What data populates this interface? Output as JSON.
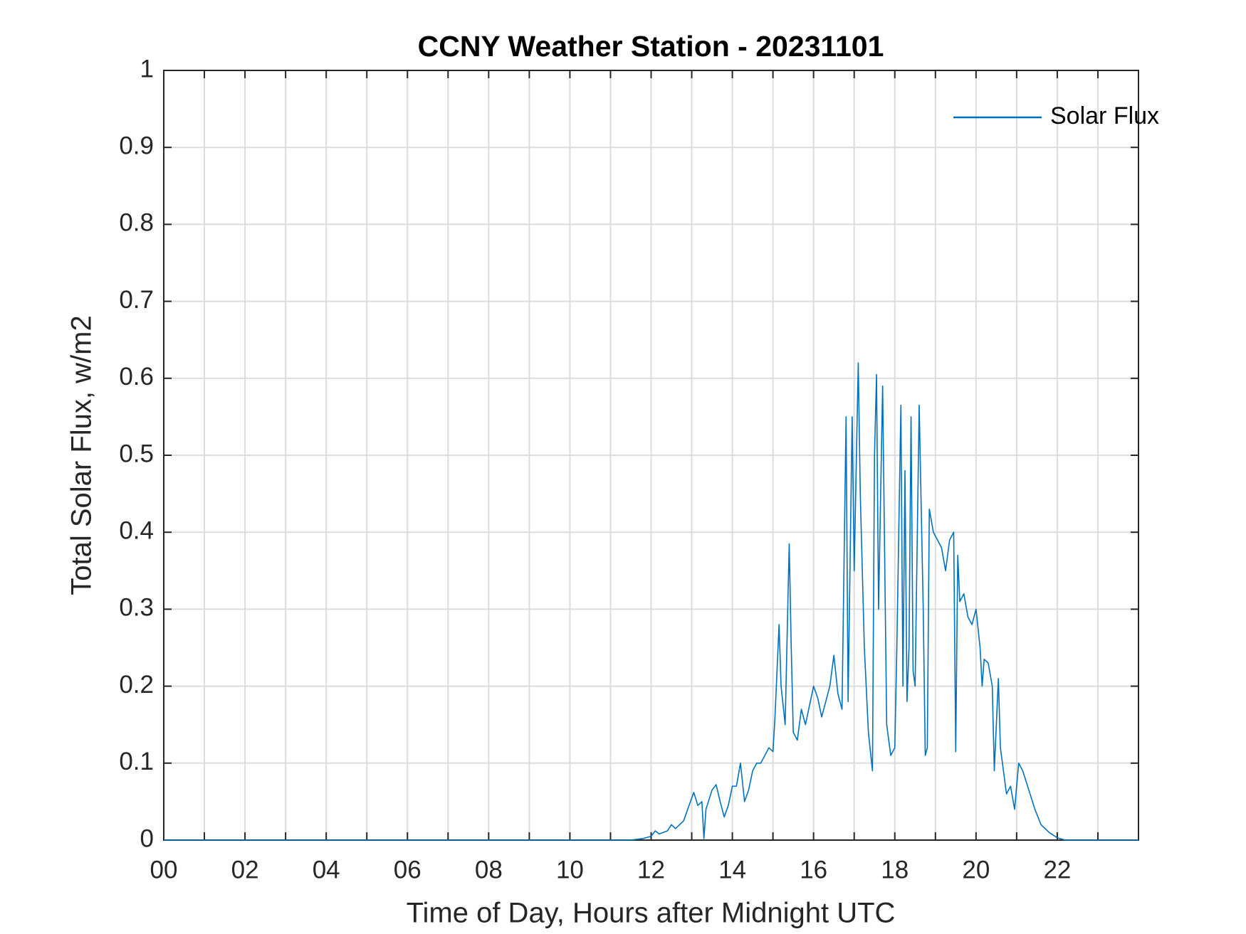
{
  "chart_data": {
    "type": "line",
    "title": "CCNY Weather Station - 20231101",
    "xlabel": "Time of Day, Hours after Midnight UTC",
    "ylabel": "Total Solar Flux, w/m2",
    "xlim": [
      0,
      24
    ],
    "ylim": [
      0,
      1
    ],
    "xticks": [
      {
        "value": 0,
        "label": "00"
      },
      {
        "value": 2,
        "label": "02"
      },
      {
        "value": 4,
        "label": "04"
      },
      {
        "value": 6,
        "label": "06"
      },
      {
        "value": 8,
        "label": "08"
      },
      {
        "value": 10,
        "label": "10"
      },
      {
        "value": 12,
        "label": "12"
      },
      {
        "value": 14,
        "label": "14"
      },
      {
        "value": 16,
        "label": "16"
      },
      {
        "value": 18,
        "label": "18"
      },
      {
        "value": 20,
        "label": "20"
      },
      {
        "value": 22,
        "label": "22"
      }
    ],
    "xminorticks": [
      1,
      3,
      5,
      7,
      9,
      11,
      13,
      15,
      17,
      19,
      21,
      23
    ],
    "yticks": [
      0,
      0.1,
      0.2,
      0.3,
      0.4,
      0.5,
      0.6,
      0.7,
      0.8,
      0.9,
      1
    ],
    "grid": true,
    "legend": "northeast",
    "x": [
      0,
      11.5,
      11.8,
      12.0,
      12.1,
      12.2,
      12.4,
      12.5,
      12.6,
      12.8,
      12.9,
      13.05,
      13.15,
      13.25,
      13.3,
      13.35,
      13.5,
      13.6,
      13.7,
      13.8,
      13.9,
      14.0,
      14.1,
      14.2,
      14.3,
      14.4,
      14.5,
      14.6,
      14.7,
      14.8,
      14.9,
      15.0,
      15.05,
      15.15,
      15.2,
      15.3,
      15.4,
      15.45,
      15.5,
      15.6,
      15.7,
      15.8,
      16.0,
      16.1,
      16.2,
      16.4,
      16.5,
      16.6,
      16.7,
      16.8,
      16.85,
      16.95,
      17.0,
      17.1,
      17.15,
      17.25,
      17.35,
      17.45,
      17.5,
      17.55,
      17.6,
      17.7,
      17.8,
      17.9,
      18.0,
      18.05,
      18.15,
      18.2,
      18.25,
      18.3,
      18.35,
      18.4,
      18.45,
      18.5,
      18.6,
      18.7,
      18.75,
      18.8,
      18.85,
      18.95,
      19.05,
      19.15,
      19.25,
      19.35,
      19.45,
      19.5,
      19.55,
      19.6,
      19.7,
      19.8,
      19.9,
      20.0,
      20.1,
      20.15,
      20.2,
      20.3,
      20.4,
      20.45,
      20.55,
      20.6,
      20.75,
      20.85,
      20.95,
      21.05,
      21.15,
      21.3,
      21.45,
      21.6,
      21.8,
      22.0,
      22.2,
      24
    ],
    "series": [
      {
        "name": "Solar Flux",
        "color": "#0072bd",
        "values": [
          0,
          0,
          0.002,
          0.005,
          0.012,
          0.008,
          0.012,
          0.02,
          0.015,
          0.025,
          0.04,
          0.062,
          0.045,
          0.05,
          0.002,
          0.04,
          0.065,
          0.072,
          0.05,
          0.03,
          0.045,
          0.07,
          0.07,
          0.1,
          0.05,
          0.065,
          0.09,
          0.1,
          0.1,
          0.11,
          0.12,
          0.115,
          0.16,
          0.28,
          0.2,
          0.15,
          0.385,
          0.25,
          0.14,
          0.13,
          0.17,
          0.15,
          0.2,
          0.185,
          0.16,
          0.2,
          0.24,
          0.19,
          0.17,
          0.55,
          0.18,
          0.55,
          0.35,
          0.62,
          0.45,
          0.25,
          0.14,
          0.09,
          0.5,
          0.605,
          0.3,
          0.59,
          0.15,
          0.11,
          0.12,
          0.25,
          0.565,
          0.2,
          0.48,
          0.18,
          0.25,
          0.55,
          0.22,
          0.2,
          0.565,
          0.3,
          0.11,
          0.12,
          0.43,
          0.4,
          0.39,
          0.38,
          0.35,
          0.39,
          0.4,
          0.115,
          0.37,
          0.31,
          0.32,
          0.29,
          0.28,
          0.3,
          0.25,
          0.2,
          0.235,
          0.23,
          0.2,
          0.09,
          0.21,
          0.12,
          0.06,
          0.07,
          0.04,
          0.1,
          0.09,
          0.065,
          0.04,
          0.02,
          0.01,
          0.003,
          0,
          0
        ]
      }
    ]
  }
}
